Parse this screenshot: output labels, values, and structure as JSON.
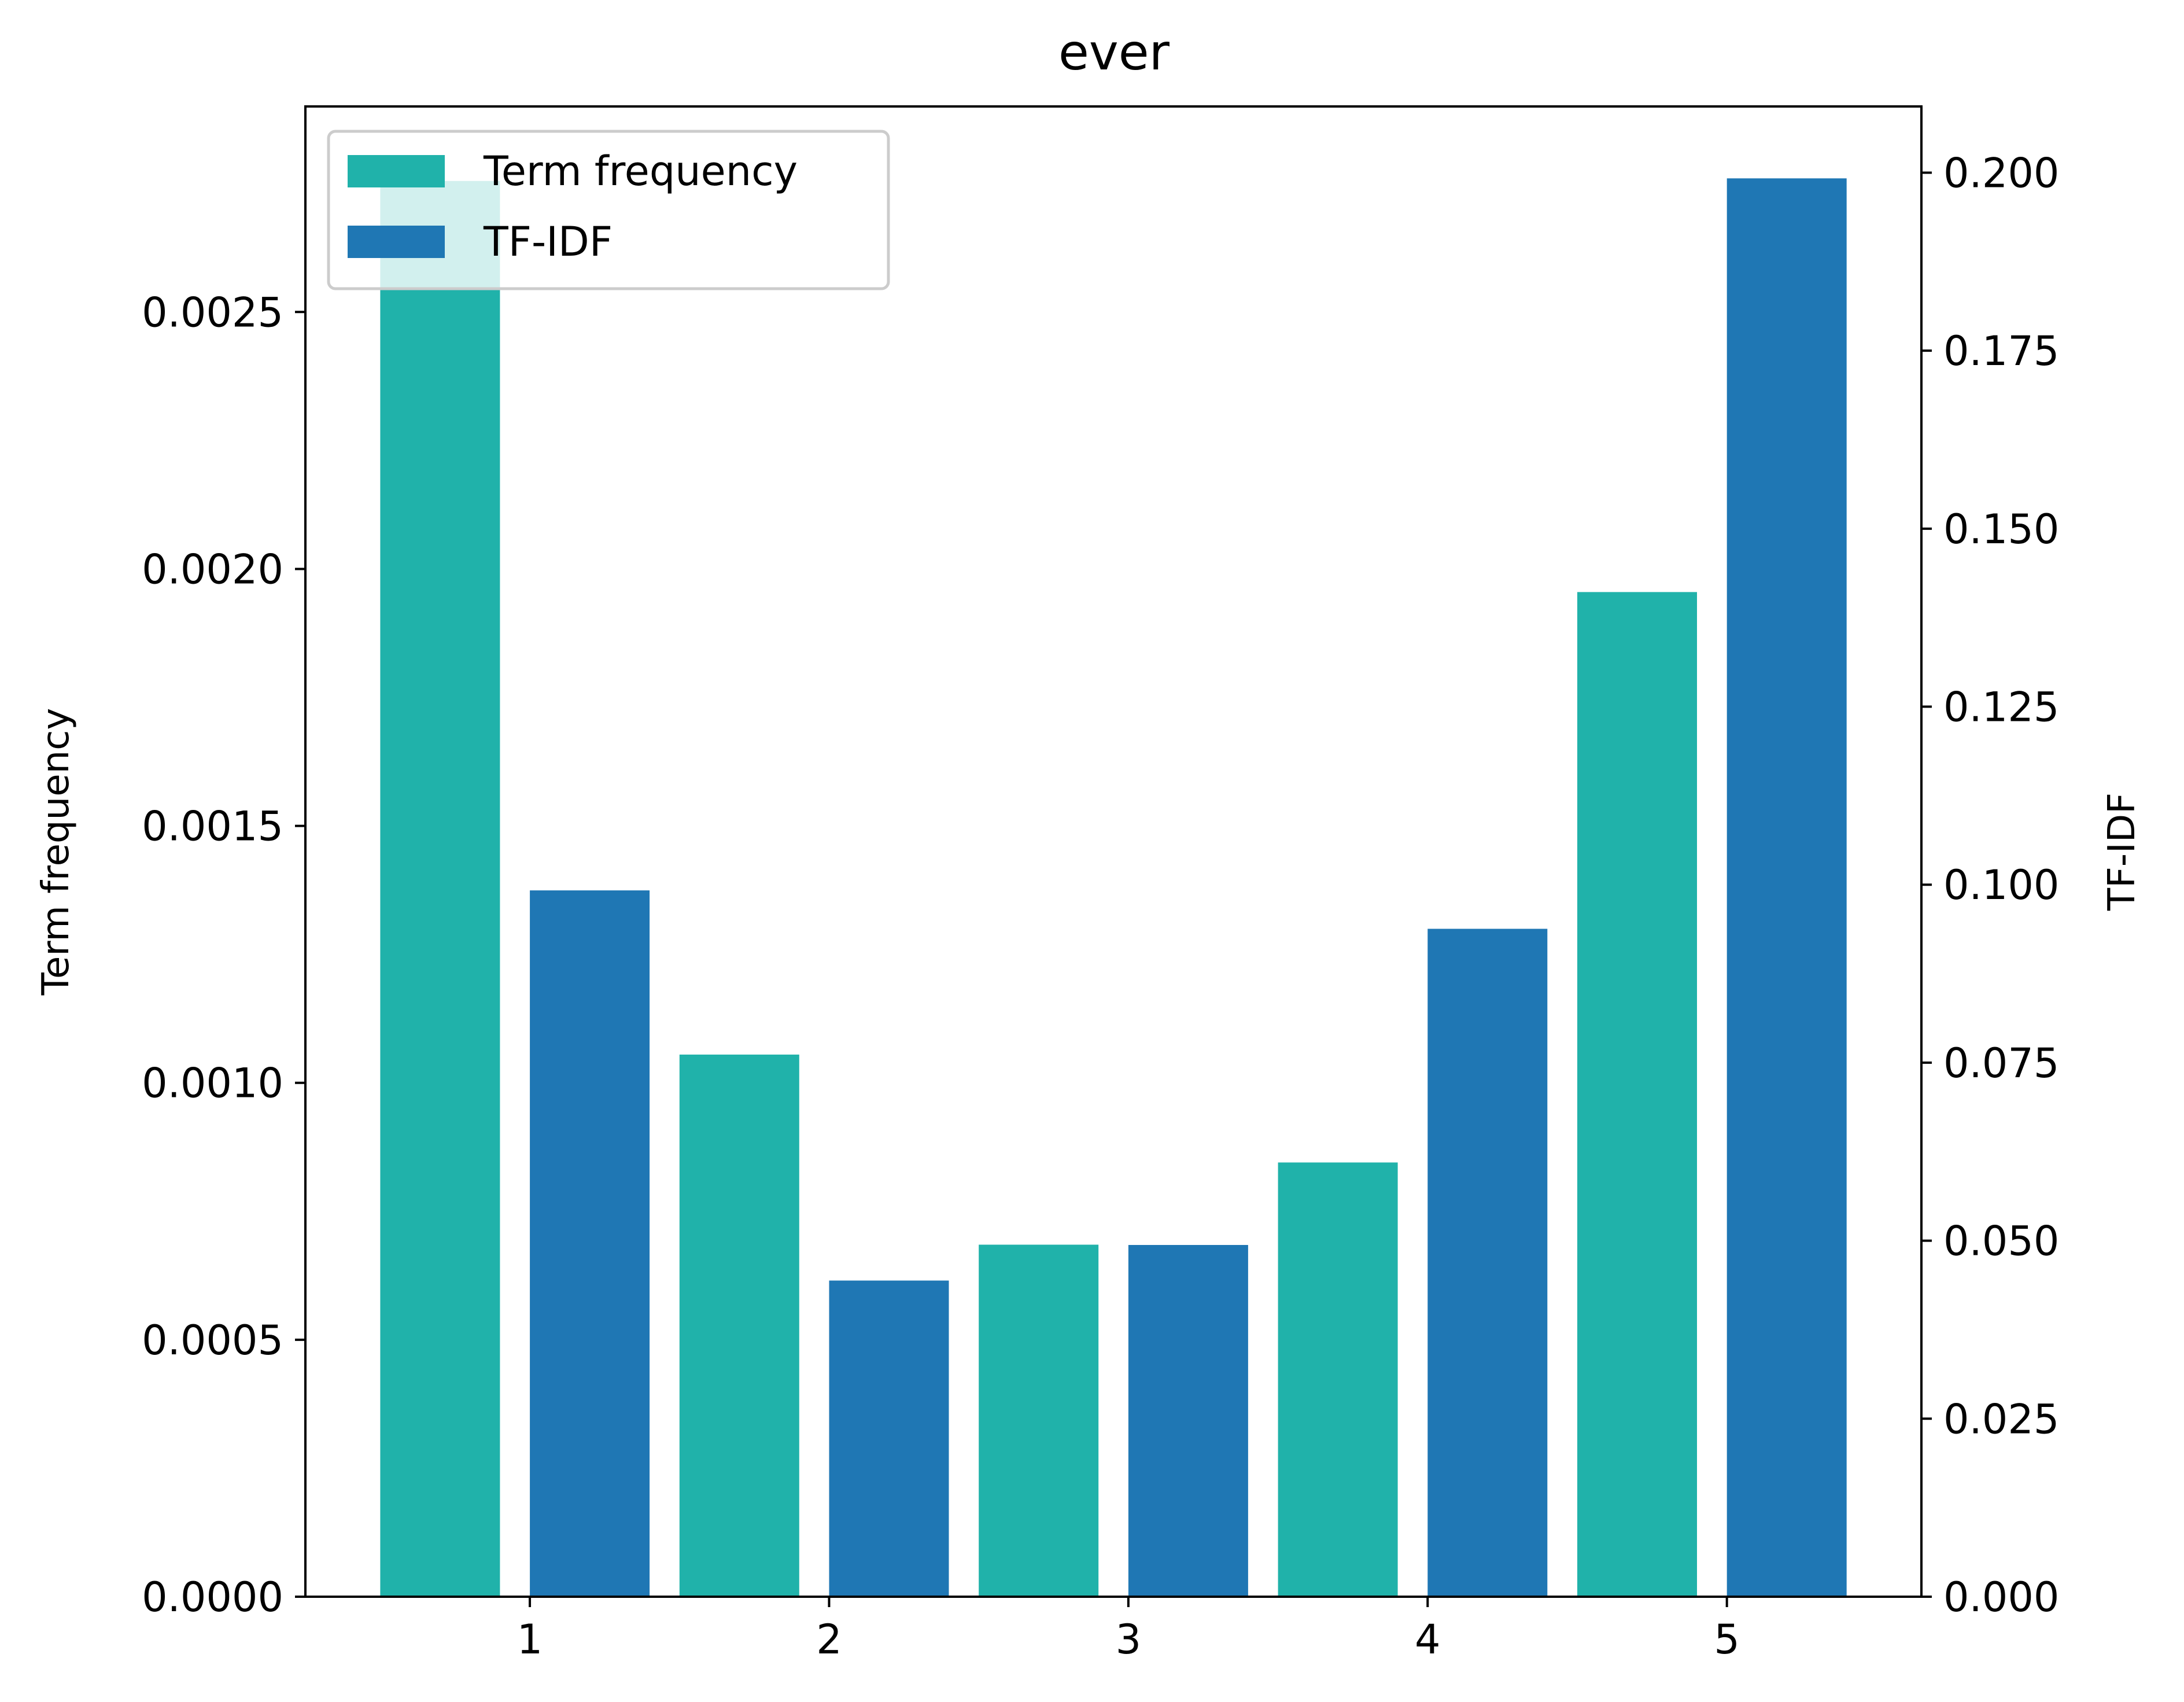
{
  "chart_data": {
    "type": "bar",
    "title": "ever",
    "categories": [
      "1",
      "2",
      "3",
      "4",
      "5"
    ],
    "series": [
      {
        "name": "Term frequency",
        "axis": "left",
        "color": "#20b2aa",
        "values": [
          0.002755,
          0.001055,
          0.000685,
          0.000845,
          0.001955
        ]
      },
      {
        "name": "TF-IDF",
        "axis": "right",
        "color": "#1f77b4",
        "values": [
          0.0992,
          0.0444,
          0.0494,
          0.0938,
          0.1992
        ]
      }
    ],
    "ylabel": "Term frequency",
    "y2label": "TF-IDF",
    "xlim": [
      0.25,
      5.65
    ],
    "ylim": [
      0,
      0.0029
    ],
    "y2lim": [
      0,
      0.2093
    ],
    "yticks": [
      "0.0000",
      "0.0005",
      "0.0010",
      "0.0015",
      "0.0020",
      "0.0025"
    ],
    "y2ticks": [
      "0.000",
      "0.025",
      "0.050",
      "0.075",
      "0.100",
      "0.125",
      "0.150",
      "0.175",
      "0.200"
    ],
    "legend": {
      "placement": "upper-left",
      "entries": [
        "Term frequency",
        "TF-IDF"
      ]
    },
    "grid": false
  }
}
